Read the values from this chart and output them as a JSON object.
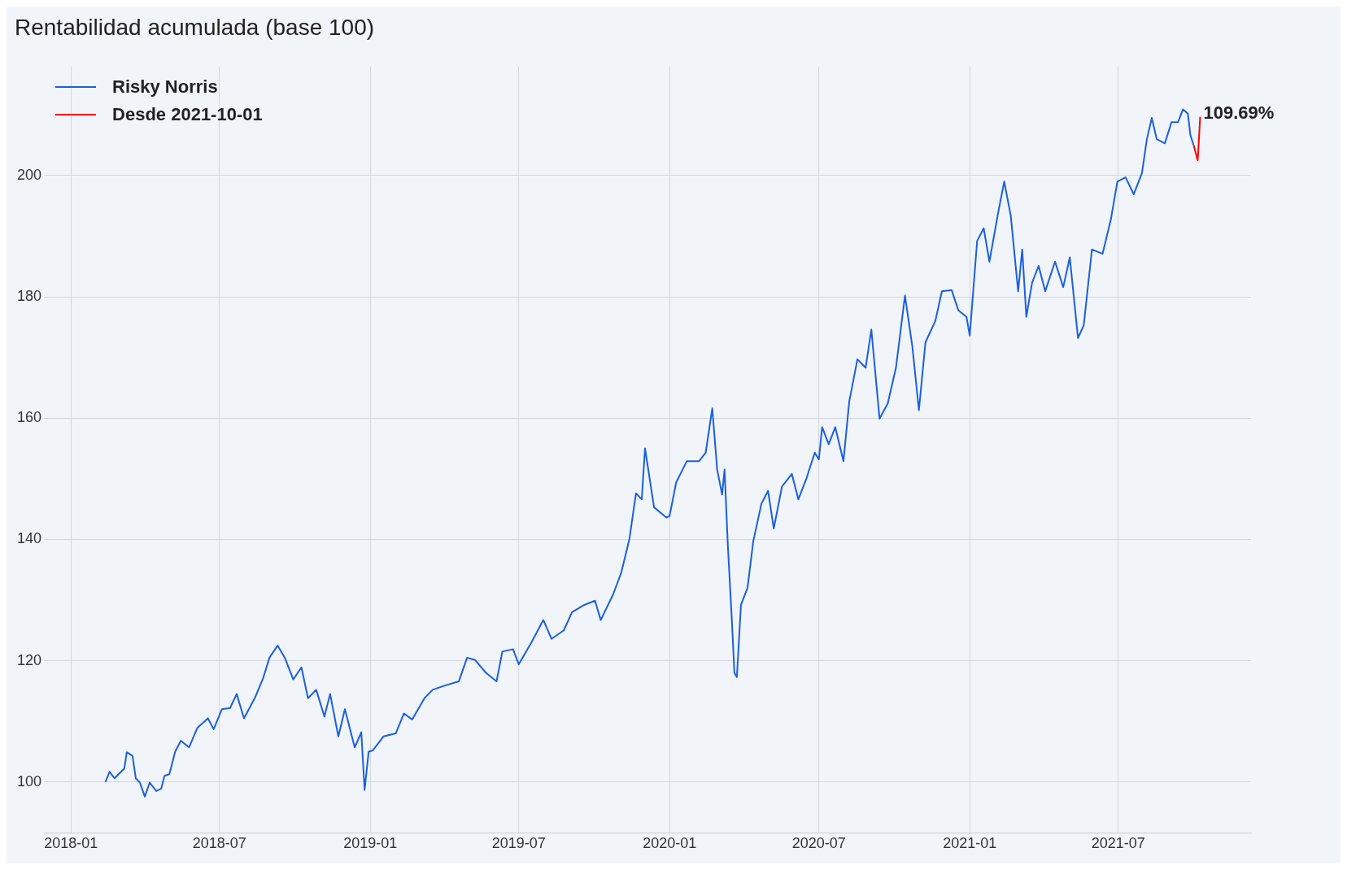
{
  "chart_data": {
    "type": "line",
    "title": "Rentabilidad acumulada (base 100)",
    "legend": "top left",
    "grid": true,
    "xlim": [
      "2017-11-29",
      "2021-12-10"
    ],
    "ylim": [
      91.6,
      218
    ],
    "yticks": [
      100,
      120,
      140,
      160,
      180,
      200
    ],
    "xticks": [
      "2018-01",
      "2018-07",
      "2019-01",
      "2019-07",
      "2020-01",
      "2020-07",
      "2021-01",
      "2021-07"
    ],
    "annotations": [
      {
        "text": "109.69%",
        "x": "2021-10-09",
        "y": 209.69
      }
    ],
    "series": [
      {
        "name": "Risky Norris",
        "color": "#1a5fe0",
        "x": [
          "2018-02-12",
          "2018-02-17",
          "2018-02-23",
          "2018-03-07",
          "2018-03-10",
          "2018-03-17",
          "2018-03-21",
          "2018-03-26",
          "2018-04-01",
          "2018-04-07",
          "2018-04-15",
          "2018-04-21",
          "2018-04-25",
          "2018-05-01",
          "2018-05-08",
          "2018-05-15",
          "2018-05-25",
          "2018-06-04",
          "2018-06-17",
          "2018-06-24",
          "2018-07-04",
          "2018-07-14",
          "2018-07-22",
          "2018-07-31",
          "2018-08-13",
          "2018-08-23",
          "2018-08-31",
          "2018-09-10",
          "2018-09-19",
          "2018-09-29",
          "2018-10-09",
          "2018-10-17",
          "2018-10-27",
          "2018-11-06",
          "2018-11-13",
          "2018-11-23",
          "2018-12-01",
          "2018-12-13",
          "2018-12-21",
          "2018-12-25",
          "2018-12-30",
          "2019-01-04",
          "2019-01-17",
          "2019-02-01",
          "2019-02-11",
          "2019-02-21",
          "2019-03-08",
          "2019-03-18",
          "2019-04-02",
          "2019-04-19",
          "2019-04-29",
          "2019-05-09",
          "2019-05-22",
          "2019-06-04",
          "2019-06-11",
          "2019-06-24",
          "2019-07-01",
          "2019-07-16",
          "2019-07-31",
          "2019-08-10",
          "2019-08-25",
          "2019-09-04",
          "2019-09-19",
          "2019-10-02",
          "2019-10-09",
          "2019-10-24",
          "2019-11-03",
          "2019-11-13",
          "2019-11-21",
          "2019-11-28",
          "2019-12-02",
          "2019-12-13",
          "2019-12-28",
          "2020-01-01",
          "2020-01-09",
          "2020-01-22",
          "2020-02-06",
          "2020-02-14",
          "2020-02-22",
          "2020-02-28",
          "2020-03-05",
          "2020-03-08",
          "2020-03-12",
          "2020-03-17",
          "2020-03-20",
          "2020-03-23",
          "2020-03-28",
          "2020-04-05",
          "2020-04-12",
          "2020-04-22",
          "2020-04-30",
          "2020-05-07",
          "2020-05-17",
          "2020-05-29",
          "2020-06-06",
          "2020-06-16",
          "2020-06-26",
          "2020-07-01",
          "2020-07-05",
          "2020-07-13",
          "2020-07-21",
          "2020-07-31",
          "2020-08-07",
          "2020-08-17",
          "2020-08-27",
          "2020-09-03",
          "2020-09-13",
          "2020-09-23",
          "2020-10-03",
          "2020-10-14",
          "2020-10-23",
          "2020-10-31",
          "2020-11-08",
          "2020-11-20",
          "2020-11-28",
          "2020-12-10",
          "2020-12-18",
          "2020-12-28",
          "2021-01-01",
          "2021-01-10",
          "2021-01-18",
          "2021-01-25",
          "2021-02-04",
          "2021-02-12",
          "2021-02-20",
          "2021-03-01",
          "2021-03-06",
          "2021-03-11",
          "2021-03-18",
          "2021-03-26",
          "2021-04-03",
          "2021-04-15",
          "2021-04-25",
          "2021-05-03",
          "2021-05-13",
          "2021-05-20",
          "2021-05-30",
          "2021-06-12",
          "2021-06-22",
          "2021-06-30",
          "2021-07-10",
          "2021-07-20",
          "2021-07-30",
          "2021-08-05",
          "2021-08-11",
          "2021-08-17",
          "2021-08-27",
          "2021-09-04",
          "2021-09-12",
          "2021-09-18",
          "2021-09-24",
          "2021-09-27",
          "2021-10-01"
        ],
        "values": [
          100,
          101.7,
          100.6,
          102.2,
          104.9,
          104.3,
          100.6,
          99.9,
          97.6,
          99.9,
          98.5,
          98.9,
          101,
          101.3,
          105,
          106.8,
          105.7,
          108.9,
          110.5,
          108.7,
          112,
          112.2,
          114.5,
          110.5,
          113.8,
          117,
          120.5,
          122.5,
          120.4,
          116.9,
          118.9,
          113.8,
          115.2,
          110.8,
          114.5,
          107.5,
          112,
          105.7,
          108.2,
          98.7,
          105,
          105.2,
          107.5,
          108,
          111.3,
          110.3,
          113.8,
          115.2,
          115.9,
          116.6,
          120.5,
          120.1,
          118,
          116.6,
          121.5,
          121.9,
          119.4,
          122.9,
          126.7,
          123.6,
          125,
          128,
          129.2,
          129.9,
          126.7,
          130.9,
          134.5,
          140.1,
          147.6,
          146.6,
          155,
          145.3,
          143.6,
          143.9,
          149.4,
          152.9,
          152.9,
          154.3,
          161.6,
          151.5,
          147.4,
          151.5,
          139,
          126.4,
          118,
          117.3,
          129.2,
          132,
          139.7,
          145.9,
          148,
          141.8,
          148.7,
          150.8,
          146.6,
          150.1,
          154.3,
          153.2,
          158.5,
          155.7,
          158.5,
          152.9,
          162.7,
          169.7,
          168.3,
          174.6,
          159.9,
          162.4,
          168.3,
          180.2,
          171.8,
          161.3,
          172.5,
          176,
          180.9,
          181.1,
          177.8,
          176.7,
          173.6,
          189.2,
          191.3,
          185.8,
          193.4,
          199,
          193.4,
          180.9,
          187.8,
          176.7,
          182.3,
          185.1,
          180.9,
          185.8,
          181.6,
          186.5,
          173.2,
          175.3,
          187.8,
          187.1,
          192.7,
          199,
          199.7,
          196.9,
          200.4,
          206,
          209.5,
          206,
          205.3,
          208.8,
          208.8,
          210.9,
          210.2,
          206.7,
          205
        ]
      },
      {
        "name": "Desde 2021-10-01",
        "color": "#ff0000",
        "x": [
          "2021-10-01",
          "2021-10-06",
          "2021-10-09"
        ],
        "values": [
          205,
          202.5,
          209.69
        ]
      }
    ]
  }
}
